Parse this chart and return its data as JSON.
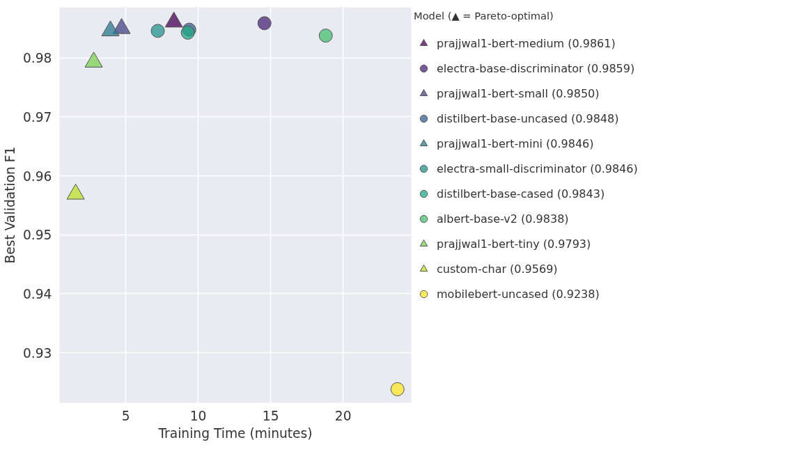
{
  "chart_data": {
    "type": "scatter",
    "xlabel": "Training Time (minutes)",
    "ylabel": "Best Validation F1",
    "legend_title": "Model (▲ = Pareto-optimal)",
    "legend": "right",
    "grid": true,
    "xlim": [
      0.43,
      24.7
    ],
    "ylim": [
      0.9215,
      0.9886
    ],
    "xticks": [
      5,
      10,
      15,
      20
    ],
    "yticks": [
      0.93,
      0.94,
      0.95,
      0.96,
      0.97,
      0.98
    ],
    "series": [
      {
        "name": "prajjwal1-bert-medium (0.9861)",
        "color": "#440154",
        "marker": "triangle",
        "x": [
          8.32
        ],
        "values": [
          0.9861
        ]
      },
      {
        "name": "electra-base-discriminator (0.9859)",
        "color": "#482475",
        "marker": "circle",
        "x": [
          14.57
        ],
        "values": [
          0.9859
        ]
      },
      {
        "name": "prajjwal1-bert-small (0.9850)",
        "color": "#414487",
        "marker": "triangle",
        "x": [
          4.71
        ],
        "values": [
          0.985
        ]
      },
      {
        "name": "distilbert-base-uncased (0.9848)",
        "color": "#355f8d",
        "marker": "circle",
        "x": [
          9.38
        ],
        "values": [
          0.9848
        ]
      },
      {
        "name": "prajjwal1-bert-mini (0.9846)",
        "color": "#2a788e",
        "marker": "triangle",
        "x": [
          3.94
        ],
        "values": [
          0.9846
        ]
      },
      {
        "name": "electra-small-discriminator (0.9846)",
        "color": "#21918c",
        "marker": "circle",
        "x": [
          7.21
        ],
        "values": [
          0.9846
        ]
      },
      {
        "name": "distilbert-base-cased (0.9843)",
        "color": "#22a884",
        "marker": "circle",
        "x": [
          9.28
        ],
        "values": [
          0.9843
        ]
      },
      {
        "name": "albert-base-v2 (0.9838)",
        "color": "#44bf70",
        "marker": "circle",
        "x": [
          18.8
        ],
        "values": [
          0.9838
        ]
      },
      {
        "name": "prajjwal1-bert-tiny (0.9793)",
        "color": "#7ad151",
        "marker": "triangle",
        "x": [
          2.79
        ],
        "values": [
          0.9793
        ]
      },
      {
        "name": "custom-char (0.9569)",
        "color": "#bddf26",
        "marker": "triangle",
        "x": [
          1.54
        ],
        "values": [
          0.9569
        ]
      },
      {
        "name": "mobilebert-uncased (0.9238)",
        "color": "#fde725",
        "marker": "circle",
        "x": [
          23.75
        ],
        "values": [
          0.9238
        ]
      }
    ]
  }
}
